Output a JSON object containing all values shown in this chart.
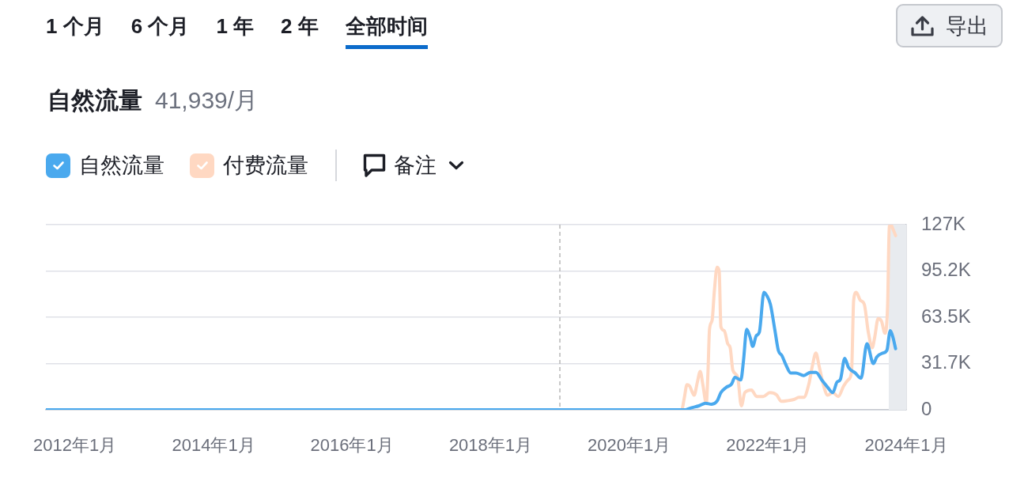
{
  "chart_data": {
    "type": "line",
    "title": "自然流量",
    "subtitle": "41,939/月",
    "annotations": [
      "1 个月",
      "6 个月",
      "1 年",
      "2 年",
      "全部时间",
      "导出",
      "备注"
    ],
    "legend": "top left",
    "grid": "y",
    "xlim": [
      "2011-08",
      "2024-01"
    ],
    "xticks": [
      {
        "value": "2012-01",
        "label": "2012年1月"
      },
      {
        "value": "2014-01",
        "label": "2014年1月"
      },
      {
        "value": "2016-01",
        "label": "2016年1月"
      },
      {
        "value": "2018-01",
        "label": "2018年1月"
      },
      {
        "value": "2020-01",
        "label": "2020年1月"
      },
      {
        "value": "2022-01",
        "label": "2022年1月"
      },
      {
        "value": "2024-01",
        "label": "2024年1月"
      }
    ],
    "ylim": [
      0,
      127000
    ],
    "yticks": [
      0,
      {
        "value": 31750,
        "label": "31.7K"
      },
      {
        "value": 63500,
        "label": "63.5K"
      },
      {
        "value": 95250,
        "label": "95.2K"
      },
      {
        "value": 127000,
        "label": "127K"
      }
    ],
    "ref_lines": [
      {
        "axis": "x",
        "value": "2019-01",
        "color": "#b8b8b8",
        "line_style": "dashed"
      }
    ],
    "bands": [
      {
        "axis": "x",
        "from": "2023-10",
        "to": "2024-01",
        "color": "#e8ebef"
      }
    ],
    "series": [
      {
        "name": "自然流量",
        "color": "#4aa9ee",
        "x": [
          "2011-08",
          "2020-10-25",
          "2020-11-22",
          "2021-01-03",
          "2021-02-07",
          "2021-03-11",
          "2021-04-09",
          "2021-04-29",
          "2021-05-27",
          "2021-06-24",
          "2021-07-12",
          "2021-08-12",
          "2021-08-26",
          "2021-09-12",
          "2021-09-30",
          "2021-10-14",
          "2021-11-01",
          "2021-11-18",
          "2021-12-12",
          "2021-12-29",
          "2022-01-15",
          "2022-02-07",
          "2022-02-26",
          "2022-03-17",
          "2022-04-07",
          "2022-05-02",
          "2022-05-29",
          "2022-07-10",
          "2022-08-14",
          "2022-09-12",
          "2022-10-16",
          "2022-11-13",
          "2022-12-10",
          "2023-01-01",
          "2023-01-19",
          "2023-02-11",
          "2023-03-03",
          "2023-04-07",
          "2023-05-08",
          "2023-06-08",
          "2023-07-12",
          "2023-07-30",
          "2023-08-30",
          "2023-09-21",
          "2023-10-09",
          "2023-10-23",
          "2023-11-06"
        ],
        "values": [
          0,
          0,
          1300,
          2700,
          4500,
          3800,
          6000,
          11800,
          15400,
          17600,
          22300,
          20500,
          33500,
          55200,
          49800,
          43500,
          50700,
          53400,
          80600,
          77900,
          72400,
          55200,
          40700,
          37100,
          30800,
          25300,
          25300,
          23500,
          25700,
          25700,
          19900,
          15400,
          11800,
          19000,
          20800,
          35300,
          29000,
          25300,
          21700,
          45300,
          31700,
          36200,
          38900,
          40700,
          54300,
          49800,
          41900
        ]
      },
      {
        "name": "付费流量",
        "color": "#ffd8c2",
        "x": [
          "2011-08",
          "2020-10-04",
          "2020-10-18",
          "2020-11-01",
          "2020-11-15",
          "2020-12-09",
          "2020-12-26",
          "2021-01-10",
          "2021-01-24",
          "2021-02-11",
          "2021-02-20",
          "2021-02-28",
          "2021-03-14",
          "2021-03-25",
          "2021-04-09",
          "2021-04-20",
          "2021-04-29",
          "2021-05-17",
          "2021-06-04",
          "2021-06-17",
          "2021-07-01",
          "2021-07-26",
          "2021-08-15",
          "2021-09-02",
          "2021-10-07",
          "2021-11-04",
          "2021-12-08",
          "2022-01-12",
          "2022-02-16",
          "2022-03-14",
          "2022-04-18",
          "2022-05-22",
          "2022-06-13",
          "2022-07-10",
          "2022-08-05",
          "2022-08-24",
          "2022-09-12",
          "2022-09-29",
          "2022-10-23",
          "2022-11-13",
          "2022-12-10",
          "2023-01-08",
          "2023-02-05",
          "2023-03-03",
          "2023-03-19",
          "2023-03-30",
          "2023-04-13",
          "2023-05-04",
          "2023-05-25",
          "2023-06-15",
          "2023-07-06",
          "2023-07-19",
          "2023-08-06",
          "2023-08-24",
          "2023-09-11",
          "2023-09-25",
          "2023-10-04",
          "2023-10-14",
          "2023-10-23",
          "2023-11-06"
        ],
        "values": [
          0,
          0,
          8100,
          17200,
          16300,
          10000,
          19000,
          26300,
          17200,
          4500,
          26300,
          55200,
          61600,
          80600,
          97800,
          95000,
          57000,
          54300,
          45300,
          42600,
          27200,
          22600,
          2700,
          11800,
          13600,
          9100,
          9100,
          11800,
          10300,
          5800,
          6300,
          7200,
          8500,
          8500,
          17200,
          29900,
          38900,
          29900,
          16300,
          10000,
          11800,
          9100,
          16300,
          20800,
          26300,
          75100,
          80600,
          75100,
          72400,
          53400,
          42600,
          49800,
          62500,
          60700,
          52500,
          71500,
          125800,
          126700,
          124000,
          119500
        ]
      }
    ]
  }
}
